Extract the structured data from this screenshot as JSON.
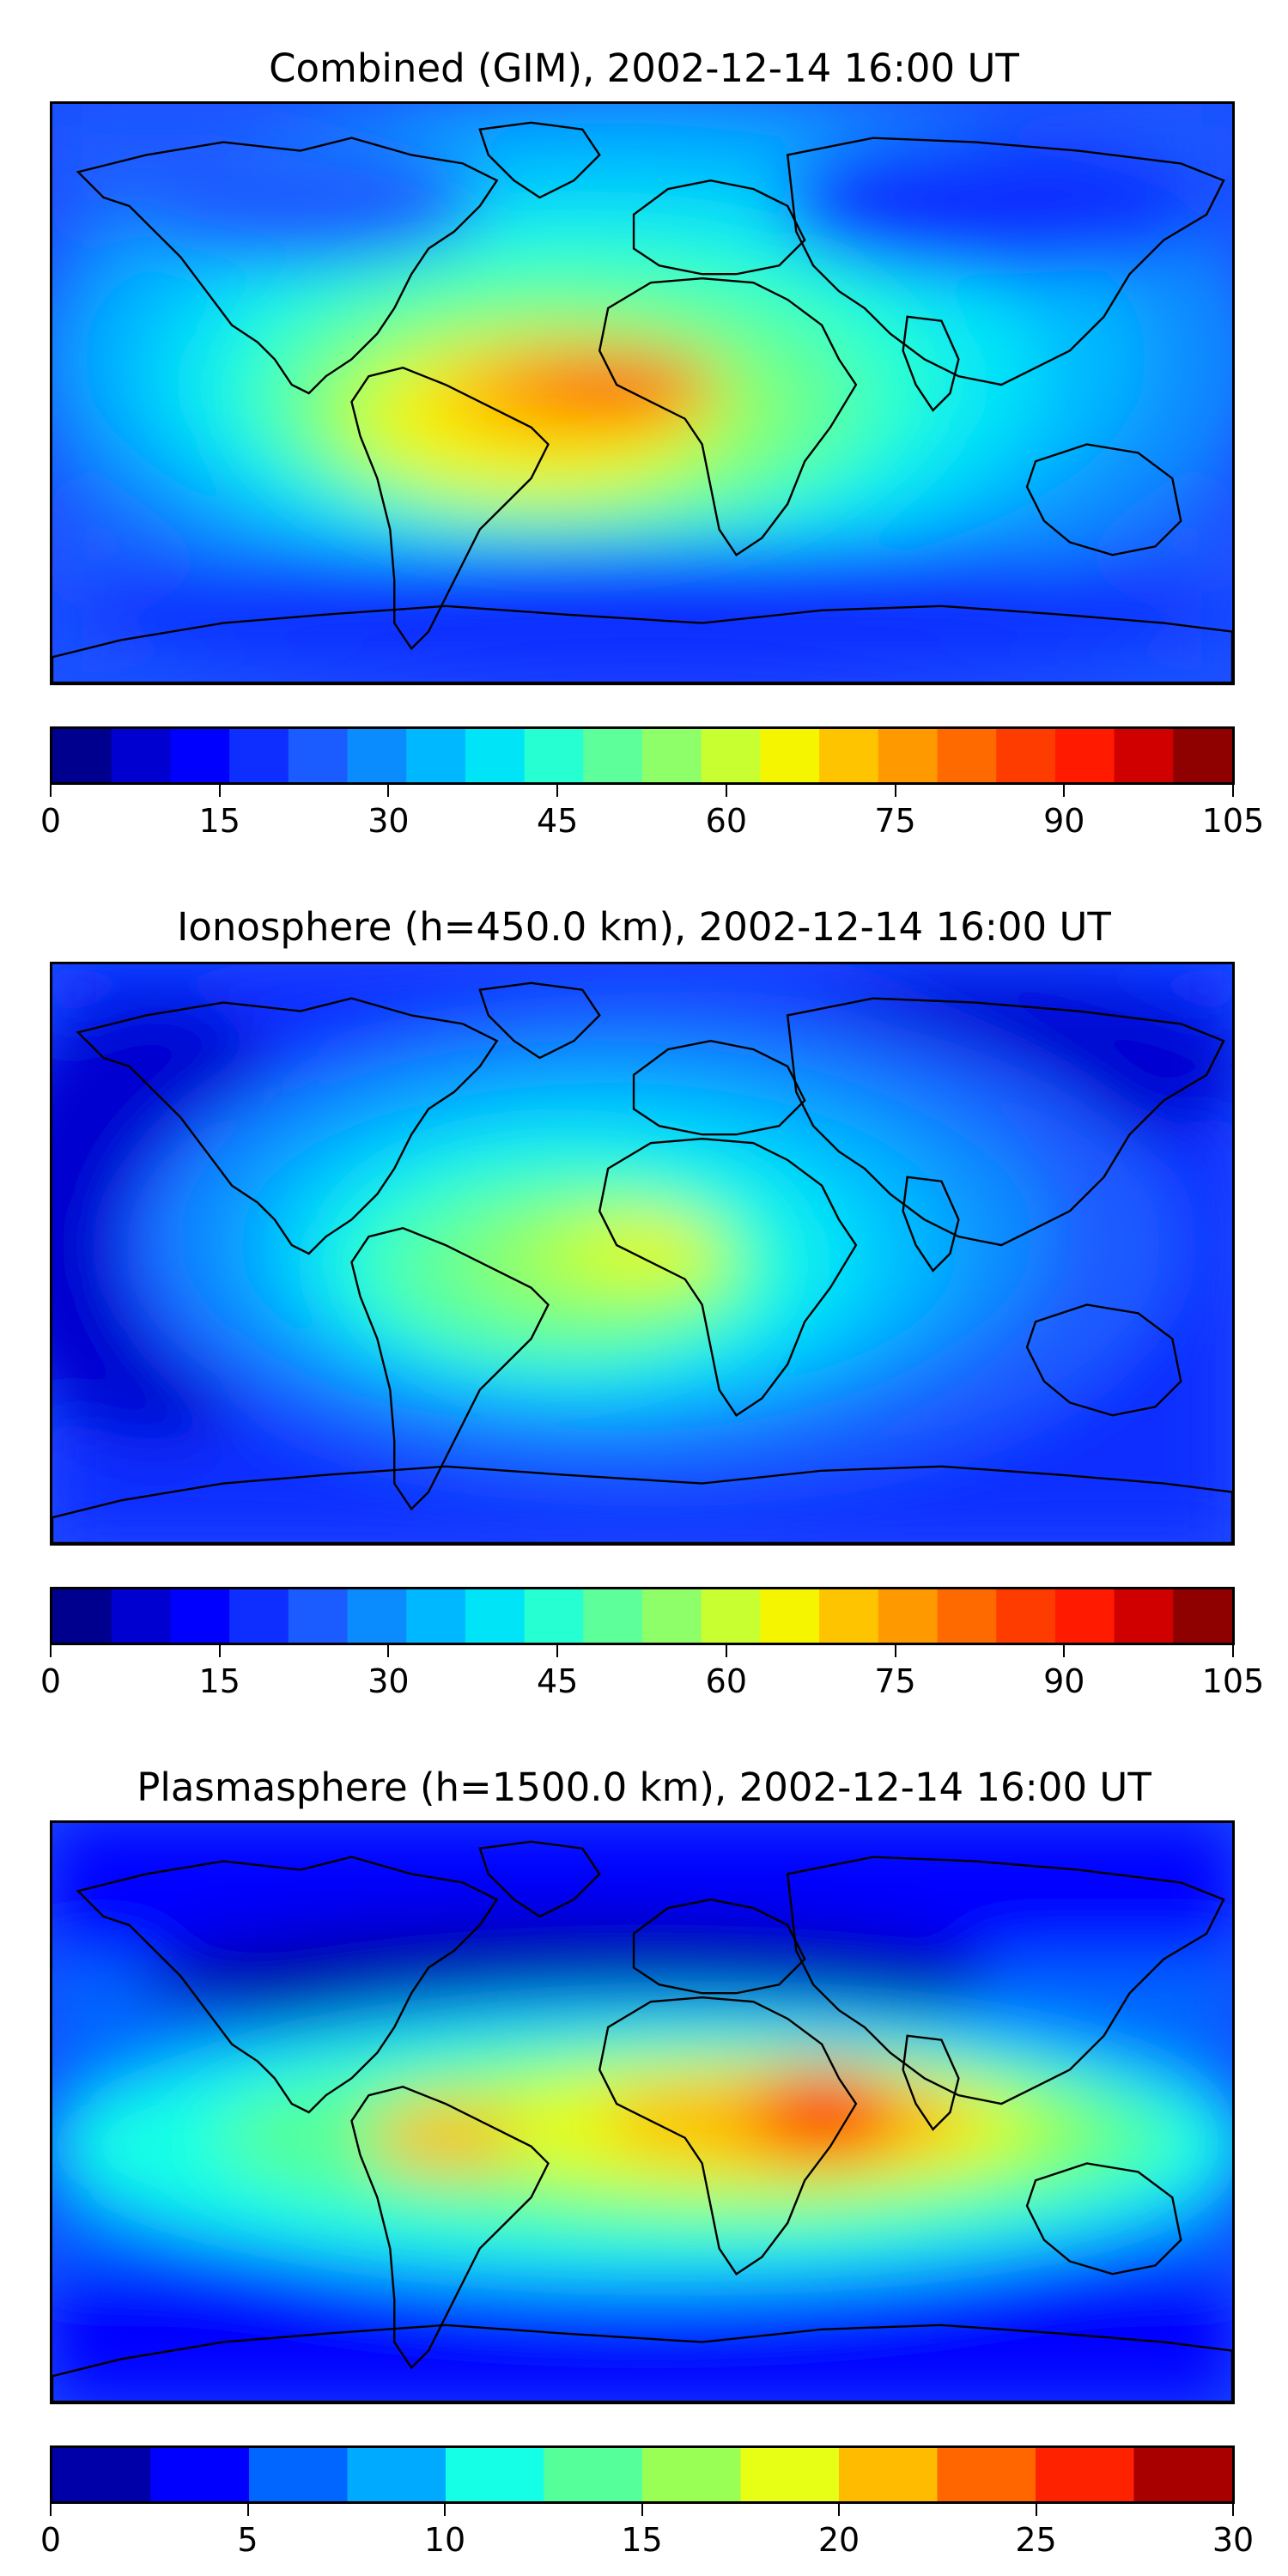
{
  "panels": [
    {
      "title": "Combined (GIM), 2002-12-14 16:00 UT",
      "colorbar": {
        "min": 0,
        "max": 105,
        "colors": [
          "#00008f",
          "#0000d0",
          "#0000ff",
          "#0d2eff",
          "#1a5cff",
          "#0a8cff",
          "#00b8ff",
          "#00e4f8",
          "#25ffd2",
          "#5dff9b",
          "#8fff69",
          "#c8ff30",
          "#f5f500",
          "#ffc400",
          "#ff9900",
          "#ff6a00",
          "#ff3c00",
          "#ff1a00",
          "#d10000",
          "#8f0000"
        ],
        "ticks": [
          "0",
          "15",
          "30",
          "45",
          "60",
          "75",
          "90",
          "105"
        ]
      }
    },
    {
      "title": "Ionosphere  (h=450.0 km), 2002-12-14 16:00 UT",
      "colorbar": {
        "min": 0,
        "max": 105,
        "colors": [
          "#00008f",
          "#0000d0",
          "#0000ff",
          "#0d2eff",
          "#1a5cff",
          "#0a8cff",
          "#00b8ff",
          "#00e4f8",
          "#25ffd2",
          "#5dff9b",
          "#8fff69",
          "#c8ff30",
          "#f5f500",
          "#ffc400",
          "#ff9900",
          "#ff6a00",
          "#ff3c00",
          "#ff1a00",
          "#d10000",
          "#8f0000"
        ],
        "ticks": [
          "0",
          "15",
          "30",
          "45",
          "60",
          "75",
          "90",
          "105"
        ]
      }
    },
    {
      "title": "Plasmasphere (h=1500.0 km), 2002-12-14 16:00 UT",
      "colorbar": {
        "min": 0,
        "max": 30,
        "colors": [
          "#0000a8",
          "#0000ff",
          "#0066ff",
          "#00aaff",
          "#15ffe6",
          "#55ff99",
          "#99ff55",
          "#e6ff15",
          "#ffbb00",
          "#ff6600",
          "#ff2200",
          "#a80000"
        ],
        "ticks": [
          "0",
          "5",
          "10",
          "15",
          "20",
          "25",
          "30"
        ]
      }
    }
  ]
}
